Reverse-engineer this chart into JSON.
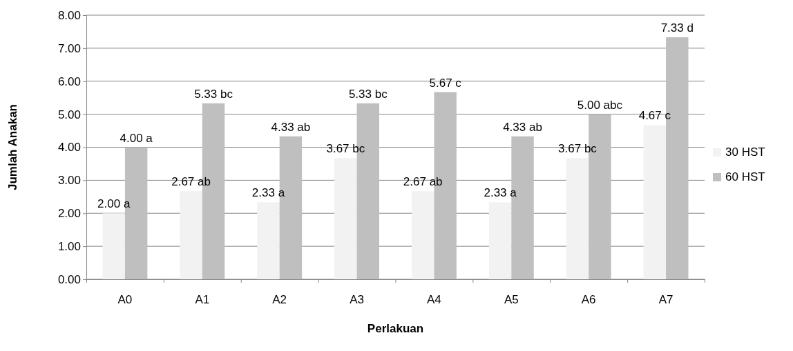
{
  "chart_data": {
    "type": "bar",
    "xlabel": "Perlakuan",
    "ylabel": "Jumlah Anakan",
    "categories": [
      "A0",
      "A1",
      "A2",
      "A3",
      "A4",
      "A5",
      "A6",
      "A7"
    ],
    "series": [
      {
        "name": "30 HST",
        "color": "#f2f2f2",
        "values": [
          2.0,
          2.67,
          2.33,
          3.67,
          2.67,
          2.33,
          3.67,
          4.67
        ],
        "value_labels": [
          "2.00 a",
          "2.67 ab",
          "2.33 a",
          "3.67 bc",
          "2.67 ab",
          "2.33 a",
          "3.67 bc",
          "4.67 c"
        ]
      },
      {
        "name": "60 HST",
        "color": "#bfbfbf",
        "values": [
          4.0,
          5.33,
          4.33,
          5.33,
          5.67,
          4.33,
          5.0,
          7.33
        ],
        "value_labels": [
          "4.00 a",
          "5.33 bc",
          "4.33 ab",
          "5.33 bc",
          "5.67 c",
          "4.33 ab",
          "5.00 abc",
          "7.33 d"
        ]
      }
    ],
    "ylim": [
      0,
      8
    ],
    "yticks": [
      {
        "value": 0,
        "label": "0.00"
      },
      {
        "value": 1,
        "label": "1.00"
      },
      {
        "value": 2,
        "label": "2.00"
      },
      {
        "value": 3,
        "label": "3.00"
      },
      {
        "value": 4,
        "label": "4.00"
      },
      {
        "value": 5,
        "label": "5.00"
      },
      {
        "value": 6,
        "label": "6.00"
      },
      {
        "value": 7,
        "label": "7.00"
      },
      {
        "value": 8,
        "label": "8.00"
      }
    ],
    "grid": "y",
    "legend": "right"
  }
}
